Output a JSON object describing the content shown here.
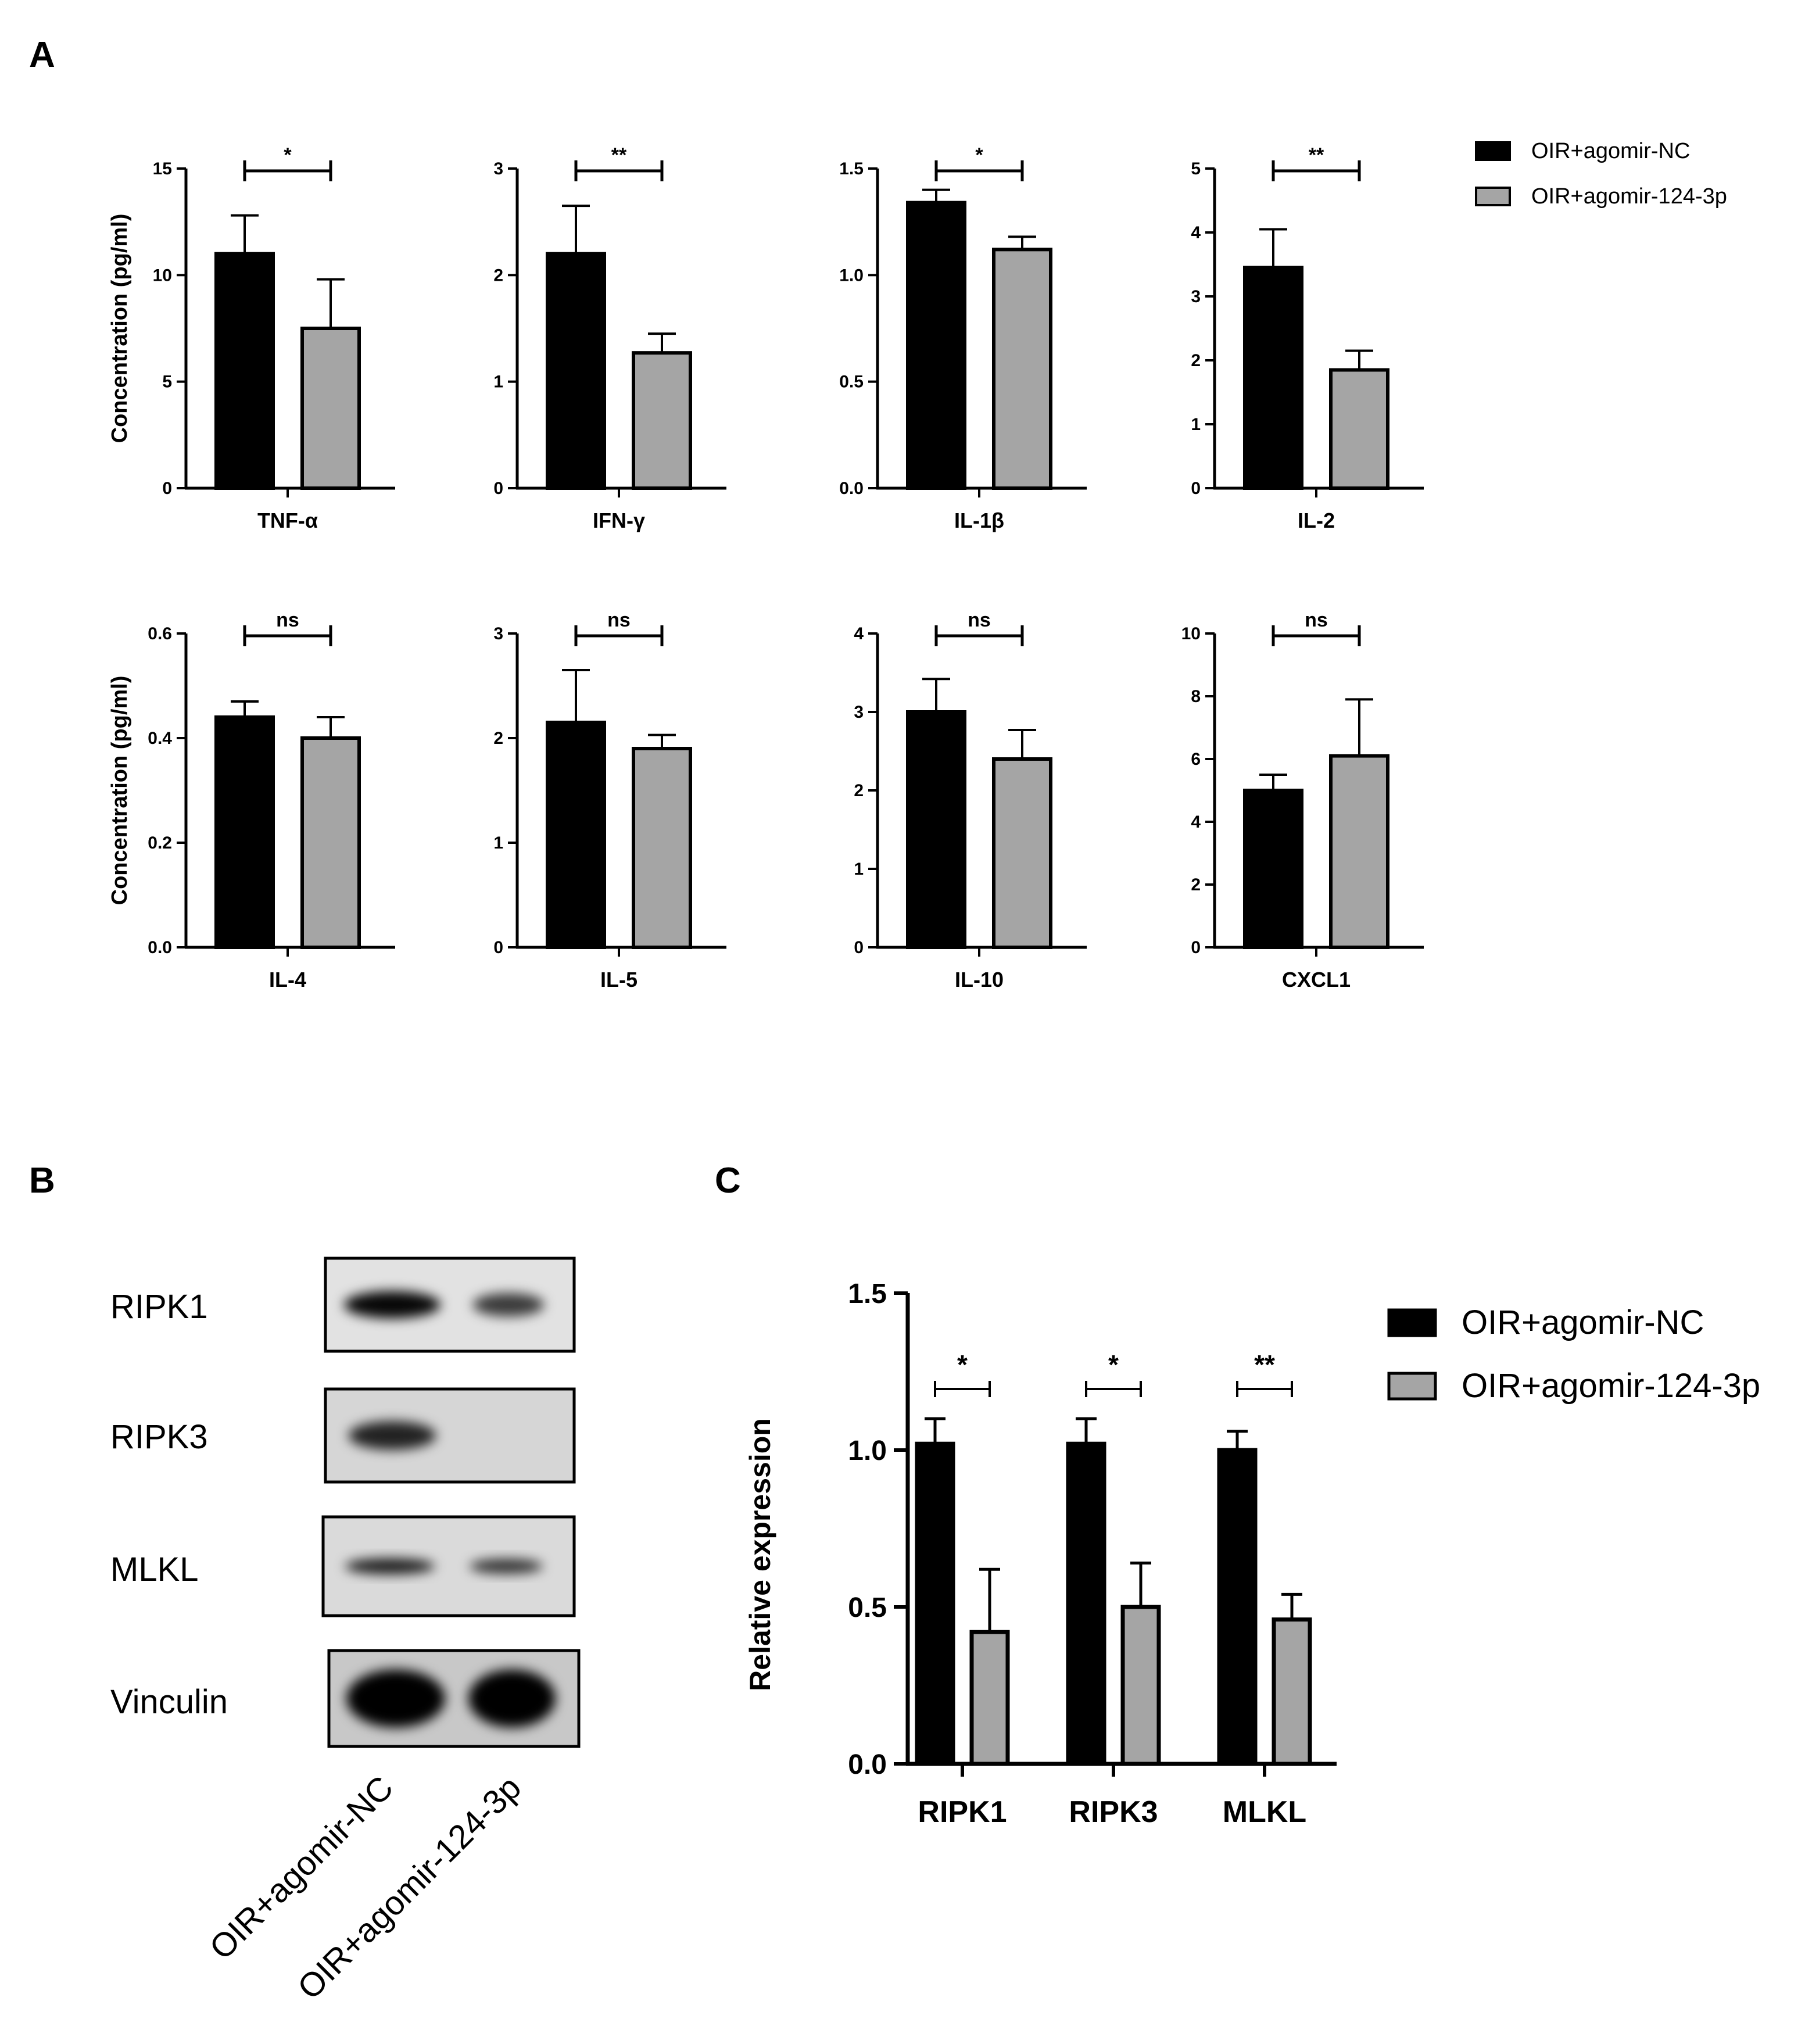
{
  "panels": {
    "a": "A",
    "b": "B",
    "c": "C"
  },
  "colors": {
    "series_nc": "#000000",
    "series_124": "#a5a5a5",
    "axis": "#000000"
  },
  "legend": {
    "nc": "OIR+agomir-NC",
    "agomir": "OIR+agomir-124-3p"
  },
  "chart_data": [
    {
      "type": "bar",
      "panel": "A",
      "category": "TNF-α",
      "ylabel": "Concentration (pg/ml)",
      "ylim": [
        0,
        15
      ],
      "yticks": [
        "0",
        "5",
        "10",
        "15"
      ],
      "series": [
        {
          "name": "OIR+agomir-NC",
          "values": [
            11.0
          ],
          "errors": [
            1.8
          ]
        },
        {
          "name": "OIR+agomir-124-3p",
          "values": [
            7.5
          ],
          "errors": [
            2.3
          ]
        }
      ],
      "significance": "*"
    },
    {
      "type": "bar",
      "panel": "A",
      "category": "IFN-γ",
      "ylabel": "",
      "ylim": [
        0,
        3
      ],
      "yticks": [
        "0",
        "1",
        "2",
        "3"
      ],
      "series": [
        {
          "name": "OIR+agomir-NC",
          "values": [
            2.2
          ],
          "errors": [
            0.45
          ]
        },
        {
          "name": "OIR+agomir-124-3p",
          "values": [
            1.27
          ],
          "errors": [
            0.18
          ]
        }
      ],
      "significance": "**"
    },
    {
      "type": "bar",
      "panel": "A",
      "category": "IL-1β",
      "ylabel": "",
      "ylim": [
        0,
        1.5
      ],
      "yticks": [
        "0.0",
        "0.5",
        "1.0",
        "1.5"
      ],
      "series": [
        {
          "name": "OIR+agomir-NC",
          "values": [
            1.34
          ],
          "errors": [
            0.06
          ]
        },
        {
          "name": "OIR+agomir-124-3p",
          "values": [
            1.12
          ],
          "errors": [
            0.06
          ]
        }
      ],
      "significance": "*"
    },
    {
      "type": "bar",
      "panel": "A",
      "category": "IL-2",
      "ylabel": "",
      "ylim": [
        0,
        5
      ],
      "yticks": [
        "0",
        "1",
        "2",
        "3",
        "4",
        "5"
      ],
      "series": [
        {
          "name": "OIR+agomir-NC",
          "values": [
            3.45
          ],
          "errors": [
            0.6
          ]
        },
        {
          "name": "OIR+agomir-124-3p",
          "values": [
            1.85
          ],
          "errors": [
            0.3
          ]
        }
      ],
      "significance": "**"
    },
    {
      "type": "bar",
      "panel": "A",
      "category": "IL-4",
      "ylabel": "Concentration (pg/ml)",
      "ylim": [
        0,
        0.6
      ],
      "yticks": [
        "0.0",
        "0.2",
        "0.4",
        "0.6"
      ],
      "series": [
        {
          "name": "OIR+agomir-NC",
          "values": [
            0.44
          ],
          "errors": [
            0.03
          ]
        },
        {
          "name": "OIR+agomir-124-3p",
          "values": [
            0.4
          ],
          "errors": [
            0.04
          ]
        }
      ],
      "significance": "ns"
    },
    {
      "type": "bar",
      "panel": "A",
      "category": "IL-5",
      "ylabel": "",
      "ylim": [
        0,
        3
      ],
      "yticks": [
        "0",
        "1",
        "2",
        "3"
      ],
      "series": [
        {
          "name": "OIR+agomir-NC",
          "values": [
            2.15
          ],
          "errors": [
            0.5
          ]
        },
        {
          "name": "OIR+agomir-124-3p",
          "values": [
            1.9
          ],
          "errors": [
            0.13
          ]
        }
      ],
      "significance": "ns"
    },
    {
      "type": "bar",
      "panel": "A",
      "category": "IL-10",
      "ylabel": "",
      "ylim": [
        0,
        4
      ],
      "yticks": [
        "0",
        "1",
        "2",
        "3",
        "4"
      ],
      "series": [
        {
          "name": "OIR+agomir-NC",
          "values": [
            3.0
          ],
          "errors": [
            0.42
          ]
        },
        {
          "name": "OIR+agomir-124-3p",
          "values": [
            2.4
          ],
          "errors": [
            0.37
          ]
        }
      ],
      "significance": "ns"
    },
    {
      "type": "bar",
      "panel": "A",
      "category": "CXCL1",
      "ylabel": "",
      "ylim": [
        0,
        10
      ],
      "yticks": [
        "0",
        "2",
        "4",
        "6",
        "8",
        "10"
      ],
      "series": [
        {
          "name": "OIR+agomir-NC",
          "values": [
            5.0
          ],
          "errors": [
            0.5
          ]
        },
        {
          "name": "OIR+agomir-124-3p",
          "values": [
            6.1
          ],
          "errors": [
            1.8
          ]
        }
      ],
      "significance": "ns"
    },
    {
      "type": "bar",
      "panel": "C",
      "categories": [
        "RIPK1",
        "RIPK3",
        "MLKL"
      ],
      "ylabel": "Relative expression",
      "ylim": [
        0,
        1.5
      ],
      "yticks": [
        "0.0",
        "0.5",
        "1.0",
        "1.5"
      ],
      "series": [
        {
          "name": "OIR+agomir-NC",
          "values": [
            1.02,
            1.02,
            1.0
          ],
          "errors": [
            0.08,
            0.08,
            0.06
          ]
        },
        {
          "name": "OIR+agomir-124-3p",
          "values": [
            0.42,
            0.5,
            0.46
          ],
          "errors": [
            0.2,
            0.14,
            0.08
          ]
        }
      ],
      "significance": [
        "*",
        "*",
        "**"
      ]
    }
  ],
  "blot": {
    "rows": [
      {
        "label": "RIPK1",
        "bands": [
          0.95,
          0.6
        ]
      },
      {
        "label": "RIPK3",
        "bands": [
          0.75,
          0.05
        ]
      },
      {
        "label": "MLKL",
        "bands": [
          0.8,
          0.65
        ]
      },
      {
        "label": "Vinculin",
        "bands": [
          1.0,
          1.0
        ]
      }
    ],
    "lanes": [
      "OIR+agomir-NC",
      "OIR+agomir-124-3p"
    ]
  }
}
